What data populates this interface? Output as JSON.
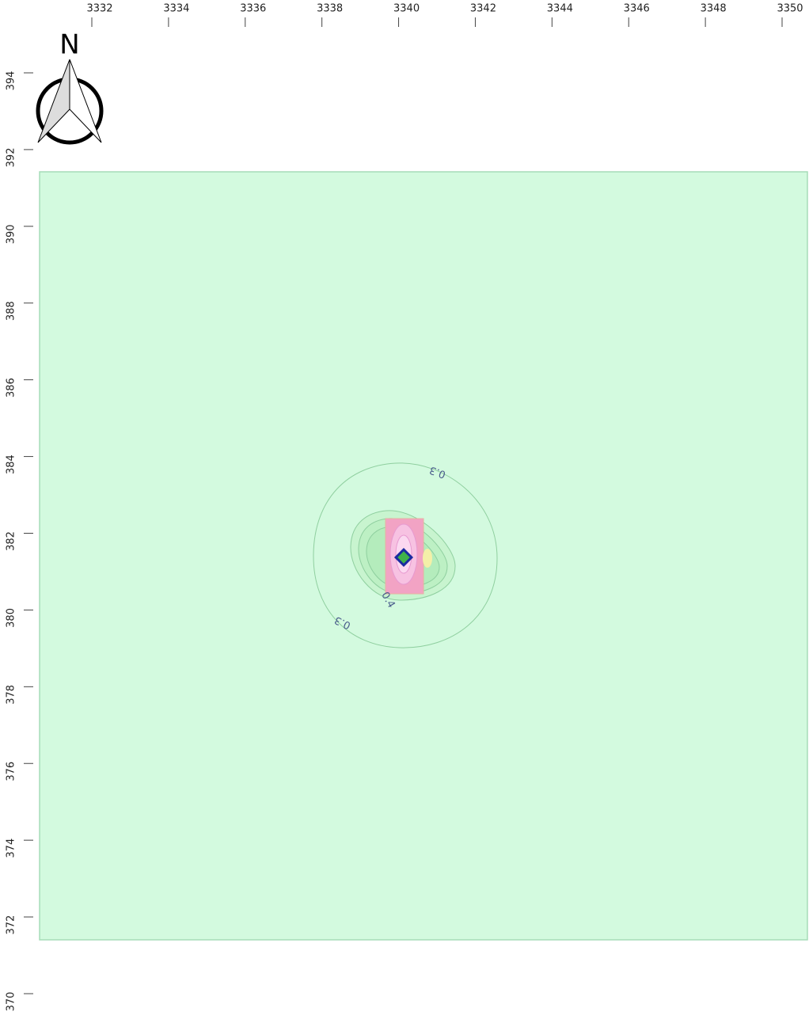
{
  "map": {
    "north_arrow": {
      "label": "N"
    },
    "xlim": [
      3332,
      3350
    ],
    "xticks": [
      3332,
      3334,
      3336,
      3338,
      3340,
      3342,
      3344,
      3346,
      3348,
      3350
    ],
    "ylim": [
      370,
      394
    ],
    "yticks": [
      394,
      392,
      390,
      388,
      386,
      384,
      382,
      380,
      378,
      376,
      374,
      372,
      370
    ],
    "contour_labels": [
      "0.3",
      "0.3",
      "0.4"
    ]
  }
}
